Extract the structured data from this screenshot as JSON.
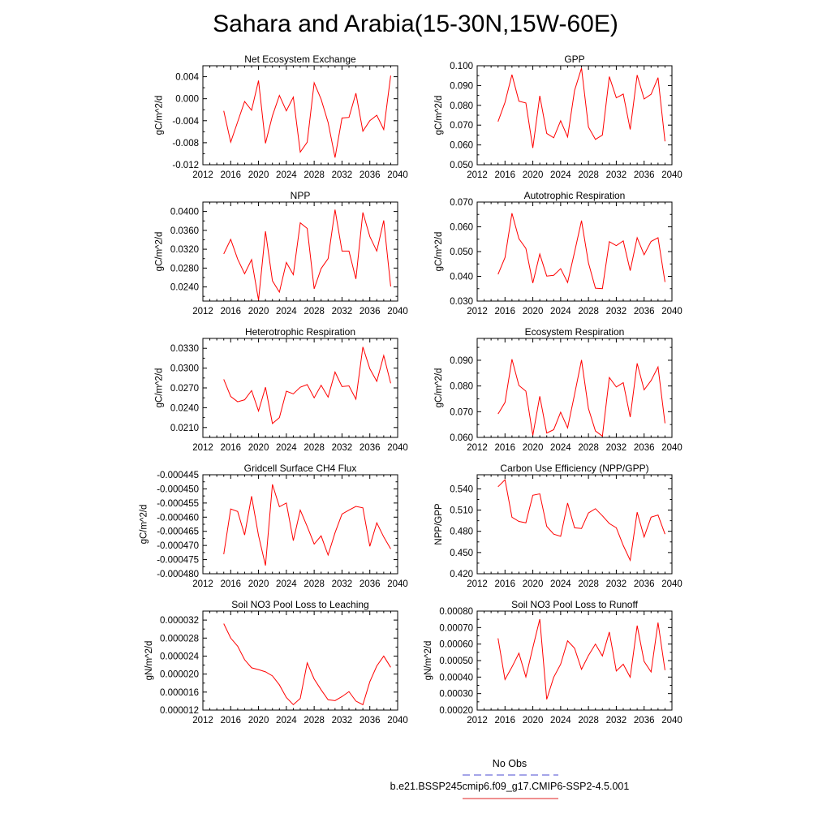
{
  "title": "Sahara and Arabia(15-30N,15W-60E)",
  "x_ticks": [
    "2012",
    "2016",
    "2020",
    "2024",
    "2028",
    "2032",
    "2036",
    "2040"
  ],
  "legend": {
    "entries": [
      {
        "label": "No Obs",
        "color": "#4b4bd0",
        "dash": "dashed"
      },
      {
        "label": "b.e21.BSSP245cmip6.f09_g17.CMIP6-SSP2-4.5.001",
        "color": "#e02020",
        "dash": "solid"
      }
    ]
  },
  "chart_data": [
    {
      "type": "line",
      "title": "Net Ecosystem Exchange",
      "ylabel": "gC/m^2/d",
      "xlim": [
        2012,
        2040
      ],
      "ylim": [
        -0.012,
        0.006
      ],
      "y_ticks": [
        "0.004",
        "0.000",
        "-0.004",
        "-0.008",
        "-0.012"
      ],
      "y_tick_values": [
        0.004,
        0.0,
        -0.004,
        -0.008,
        -0.012
      ],
      "color": "#ff0000",
      "x": [
        2015,
        2016,
        2017,
        2018,
        2019,
        2020,
        2021,
        2022,
        2023,
        2024,
        2025,
        2026,
        2027,
        2028,
        2029,
        2030,
        2031,
        2032,
        2033,
        2034,
        2035,
        2036,
        2037,
        2038,
        2039
      ],
      "y": [
        -0.0022,
        -0.0079,
        -0.0042,
        -0.0005,
        -0.0021,
        0.0033,
        -0.0081,
        -0.0031,
        0.0006,
        -0.0022,
        0.0003,
        -0.0097,
        -0.0079,
        0.0029,
        -0.0001,
        -0.0043,
        -0.0107,
        -0.0035,
        -0.0034,
        0.001,
        -0.0059,
        -0.004,
        -0.003,
        -0.0056,
        0.0042
      ]
    },
    {
      "type": "line",
      "title": "GPP",
      "ylabel": "gC/m^2/d",
      "xlim": [
        2012,
        2040
      ],
      "ylim": [
        0.05,
        0.1
      ],
      "y_ticks": [
        "0.100",
        "0.090",
        "0.080",
        "0.070",
        "0.060",
        "0.050"
      ],
      "y_tick_values": [
        0.1,
        0.09,
        0.08,
        0.07,
        0.06,
        0.05
      ],
      "color": "#ff0000",
      "x": [
        2015,
        2016,
        2017,
        2018,
        2019,
        2020,
        2021,
        2022,
        2023,
        2024,
        2025,
        2026,
        2027,
        2028,
        2029,
        2030,
        2031,
        2032,
        2033,
        2034,
        2035,
        2036,
        2037,
        2038,
        2039
      ],
      "y": [
        0.0718,
        0.0815,
        0.0955,
        0.0821,
        0.0812,
        0.0585,
        0.0848,
        0.0658,
        0.0636,
        0.0722,
        0.064,
        0.0875,
        0.0988,
        0.069,
        0.0628,
        0.065,
        0.0945,
        0.0838,
        0.0857,
        0.0678,
        0.0953,
        0.0832,
        0.0856,
        0.094,
        0.0618
      ]
    },
    {
      "type": "line",
      "title": "NPP",
      "ylabel": "gC/m^2/d",
      "xlim": [
        2012,
        2040
      ],
      "ylim": [
        0.021,
        0.042
      ],
      "y_ticks": [
        "0.0400",
        "0.0360",
        "0.0320",
        "0.0280",
        "0.0240"
      ],
      "y_tick_values": [
        0.04,
        0.036,
        0.032,
        0.028,
        0.024
      ],
      "color": "#ff0000",
      "x": [
        2015,
        2016,
        2017,
        2018,
        2019,
        2020,
        2021,
        2022,
        2023,
        2024,
        2025,
        2026,
        2027,
        2028,
        2029,
        2030,
        2031,
        2032,
        2033,
        2034,
        2035,
        2036,
        2037,
        2038,
        2039
      ],
      "y": [
        0.031,
        0.0341,
        0.0299,
        0.0268,
        0.0298,
        0.0212,
        0.0358,
        0.0253,
        0.0229,
        0.0292,
        0.0266,
        0.0376,
        0.0364,
        0.0236,
        0.0279,
        0.03,
        0.0404,
        0.0316,
        0.0316,
        0.0257,
        0.0398,
        0.0347,
        0.0316,
        0.0381,
        0.0241
      ]
    },
    {
      "type": "line",
      "title": "Autotrophic Respiration",
      "ylabel": "gC/m^2/d",
      "xlim": [
        2012,
        2040
      ],
      "ylim": [
        0.03,
        0.07
      ],
      "y_ticks": [
        "0.070",
        "0.060",
        "0.050",
        "0.040",
        "0.030"
      ],
      "y_tick_values": [
        0.07,
        0.06,
        0.05,
        0.04,
        0.03
      ],
      "color": "#ff0000",
      "x": [
        2015,
        2016,
        2017,
        2018,
        2019,
        2020,
        2021,
        2022,
        2023,
        2024,
        2025,
        2026,
        2027,
        2028,
        2029,
        2030,
        2031,
        2032,
        2033,
        2034,
        2035,
        2036,
        2037,
        2038,
        2039
      ],
      "y": [
        0.0408,
        0.0476,
        0.0655,
        0.0552,
        0.0513,
        0.0373,
        0.049,
        0.0401,
        0.0404,
        0.0431,
        0.0375,
        0.0498,
        0.0625,
        0.0454,
        0.0352,
        0.035,
        0.054,
        0.0524,
        0.0543,
        0.0423,
        0.0556,
        0.0487,
        0.0541,
        0.0556,
        0.0377
      ]
    },
    {
      "type": "line",
      "title": "Heterotrophic Respiration",
      "ylabel": "gC/m^2/d",
      "xlim": [
        2012,
        2040
      ],
      "ylim": [
        0.0195,
        0.0345
      ],
      "y_ticks": [
        "0.0330",
        "0.0300",
        "0.0270",
        "0.0240",
        "0.0210"
      ],
      "y_tick_values": [
        0.033,
        0.03,
        0.027,
        0.024,
        0.021
      ],
      "color": "#ff0000",
      "x": [
        2015,
        2016,
        2017,
        2018,
        2019,
        2020,
        2021,
        2022,
        2023,
        2024,
        2025,
        2026,
        2027,
        2028,
        2029,
        2030,
        2031,
        2032,
        2033,
        2034,
        2035,
        2036,
        2037,
        2038,
        2039
      ],
      "y": [
        0.0283,
        0.0257,
        0.0249,
        0.0252,
        0.0266,
        0.0235,
        0.0271,
        0.0216,
        0.0225,
        0.0265,
        0.0261,
        0.0271,
        0.0275,
        0.0255,
        0.0274,
        0.0256,
        0.0294,
        0.0272,
        0.0273,
        0.0253,
        0.0332,
        0.0299,
        0.028,
        0.0319,
        0.0277
      ]
    },
    {
      "type": "line",
      "title": "Ecosystem Respiration",
      "ylabel": "gC/m^2/d",
      "xlim": [
        2012,
        2040
      ],
      "ylim": [
        0.06,
        0.0985
      ],
      "y_ticks": [
        "0.090",
        "0.080",
        "0.070",
        "0.060"
      ],
      "y_tick_values": [
        0.09,
        0.08,
        0.07,
        0.06
      ],
      "color": "#ff0000",
      "x": [
        2015,
        2016,
        2017,
        2018,
        2019,
        2020,
        2021,
        2022,
        2023,
        2024,
        2025,
        2026,
        2027,
        2028,
        2029,
        2030,
        2031,
        2032,
        2033,
        2034,
        2035,
        2036,
        2037,
        2038,
        2039
      ],
      "y": [
        0.0691,
        0.0736,
        0.0904,
        0.0802,
        0.078,
        0.0608,
        0.076,
        0.0617,
        0.063,
        0.0698,
        0.0637,
        0.0767,
        0.0901,
        0.0712,
        0.0625,
        0.0605,
        0.0833,
        0.0796,
        0.0813,
        0.0679,
        0.0888,
        0.0785,
        0.0821,
        0.0874,
        0.0655
      ]
    },
    {
      "type": "line",
      "title": "Gridcell Surface CH4 Flux",
      "ylabel": "gC/m^2/d",
      "xlim": [
        2012,
        2040
      ],
      "ylim": [
        -0.00048,
        -0.000445
      ],
      "y_ticks": [
        "-0.000445",
        "-0.000450",
        "-0.000455",
        "-0.000460",
        "-0.000465",
        "-0.000470",
        "-0.000475",
        "-0.000480"
      ],
      "y_tick_values": [
        -0.000445,
        -0.00045,
        -0.000455,
        -0.00046,
        -0.000465,
        -0.00047,
        -0.000475,
        -0.00048
      ],
      "color": "#ff0000",
      "x": [
        2015,
        2016,
        2017,
        2018,
        2019,
        2020,
        2021,
        2022,
        2023,
        2024,
        2025,
        2026,
        2027,
        2028,
        2029,
        2030,
        2031,
        2032,
        2033,
        2034,
        2035,
        2036,
        2037,
        2038,
        2039
      ],
      "y": [
        -0.0004731,
        -0.0004571,
        -0.000458,
        -0.0004663,
        -0.0004526,
        -0.0004665,
        -0.0004771,
        -0.0004484,
        -0.0004563,
        -0.000455,
        -0.0004683,
        -0.0004575,
        -0.0004633,
        -0.0004695,
        -0.0004666,
        -0.0004734,
        -0.0004655,
        -0.0004589,
        -0.0004575,
        -0.0004562,
        -0.0004567,
        -0.0004703,
        -0.000462,
        -0.000467,
        -0.0004712
      ]
    },
    {
      "type": "line",
      "title": "Carbon Use Efficiency (NPP/GPP)",
      "ylabel": "NPP/GPP",
      "xlim": [
        2012,
        2040
      ],
      "ylim": [
        0.42,
        0.56
      ],
      "y_ticks": [
        "0.540",
        "0.510",
        "0.480",
        "0.450",
        "0.420"
      ],
      "y_tick_values": [
        0.54,
        0.51,
        0.48,
        0.45,
        0.42
      ],
      "color": "#ff0000",
      "x": [
        2015,
        2016,
        2017,
        2018,
        2019,
        2020,
        2021,
        2022,
        2023,
        2024,
        2025,
        2026,
        2027,
        2028,
        2029,
        2030,
        2031,
        2032,
        2033,
        2034,
        2035,
        2036,
        2037,
        2038,
        2039
      ],
      "y": [
        0.543,
        0.553,
        0.5,
        0.494,
        0.492,
        0.531,
        0.533,
        0.487,
        0.476,
        0.473,
        0.52,
        0.485,
        0.484,
        0.506,
        0.512,
        0.502,
        0.491,
        0.485,
        0.46,
        0.439,
        0.507,
        0.472,
        0.5,
        0.503,
        0.476
      ]
    },
    {
      "type": "line",
      "title": "Soil NO3 Pool Loss to Leaching",
      "ylabel": "gN/m^2/d",
      "xlim": [
        2012,
        2040
      ],
      "ylim": [
        1.2e-05,
        3.4e-05
      ],
      "y_ticks": [
        "0.000032",
        "0.000028",
        "0.000024",
        "0.000020",
        "0.000016",
        "0.000012"
      ],
      "y_tick_values": [
        3.2e-05,
        2.8e-05,
        2.4e-05,
        2e-05,
        1.6e-05,
        1.2e-05
      ],
      "color": "#ff0000",
      "x": [
        2015,
        2016,
        2017,
        2018,
        2019,
        2020,
        2021,
        2022,
        2023,
        2024,
        2025,
        2026,
        2027,
        2028,
        2029,
        2030,
        2031,
        2032,
        2033,
        2034,
        2035,
        2036,
        2037,
        2038,
        2039
      ],
      "y": [
        3.12e-05,
        2.8e-05,
        2.62e-05,
        2.32e-05,
        2.14e-05,
        2.1e-05,
        2.05e-05,
        1.96e-05,
        1.76e-05,
        1.48e-05,
        1.32e-05,
        1.46e-05,
        2.25e-05,
        1.89e-05,
        1.65e-05,
        1.43e-05,
        1.41e-05,
        1.5e-05,
        1.61e-05,
        1.4e-05,
        1.32e-05,
        1.83e-05,
        2.18e-05,
        2.4e-05,
        2.15e-05
      ]
    },
    {
      "type": "line",
      "title": "Soil NO3 Pool Loss to Runoff",
      "ylabel": "gN/m^2/d",
      "xlim": [
        2012,
        2040
      ],
      "ylim": [
        0.0002,
        0.0008
      ],
      "y_ticks": [
        "0.00080",
        "0.00070",
        "0.00060",
        "0.00050",
        "0.00040",
        "0.00030",
        "0.00020"
      ],
      "y_tick_values": [
        0.0008,
        0.0007,
        0.0006,
        0.0005,
        0.0004,
        0.0003,
        0.0002
      ],
      "color": "#ff0000",
      "x": [
        2015,
        2016,
        2017,
        2018,
        2019,
        2020,
        2021,
        2022,
        2023,
        2024,
        2025,
        2026,
        2027,
        2028,
        2029,
        2030,
        2031,
        2032,
        2033,
        2034,
        2035,
        2036,
        2037,
        2038,
        2039
      ],
      "y": [
        0.000635,
        0.000385,
        0.000461,
        0.000545,
        0.000401,
        0.000578,
        0.000751,
        0.000265,
        0.000399,
        0.000478,
        0.00062,
        0.000575,
        0.000447,
        0.000531,
        0.0006,
        0.000528,
        0.000673,
        0.000437,
        0.000478,
        0.000399,
        0.000712,
        0.000495,
        0.000431,
        0.00073,
        0.000442
      ]
    }
  ]
}
